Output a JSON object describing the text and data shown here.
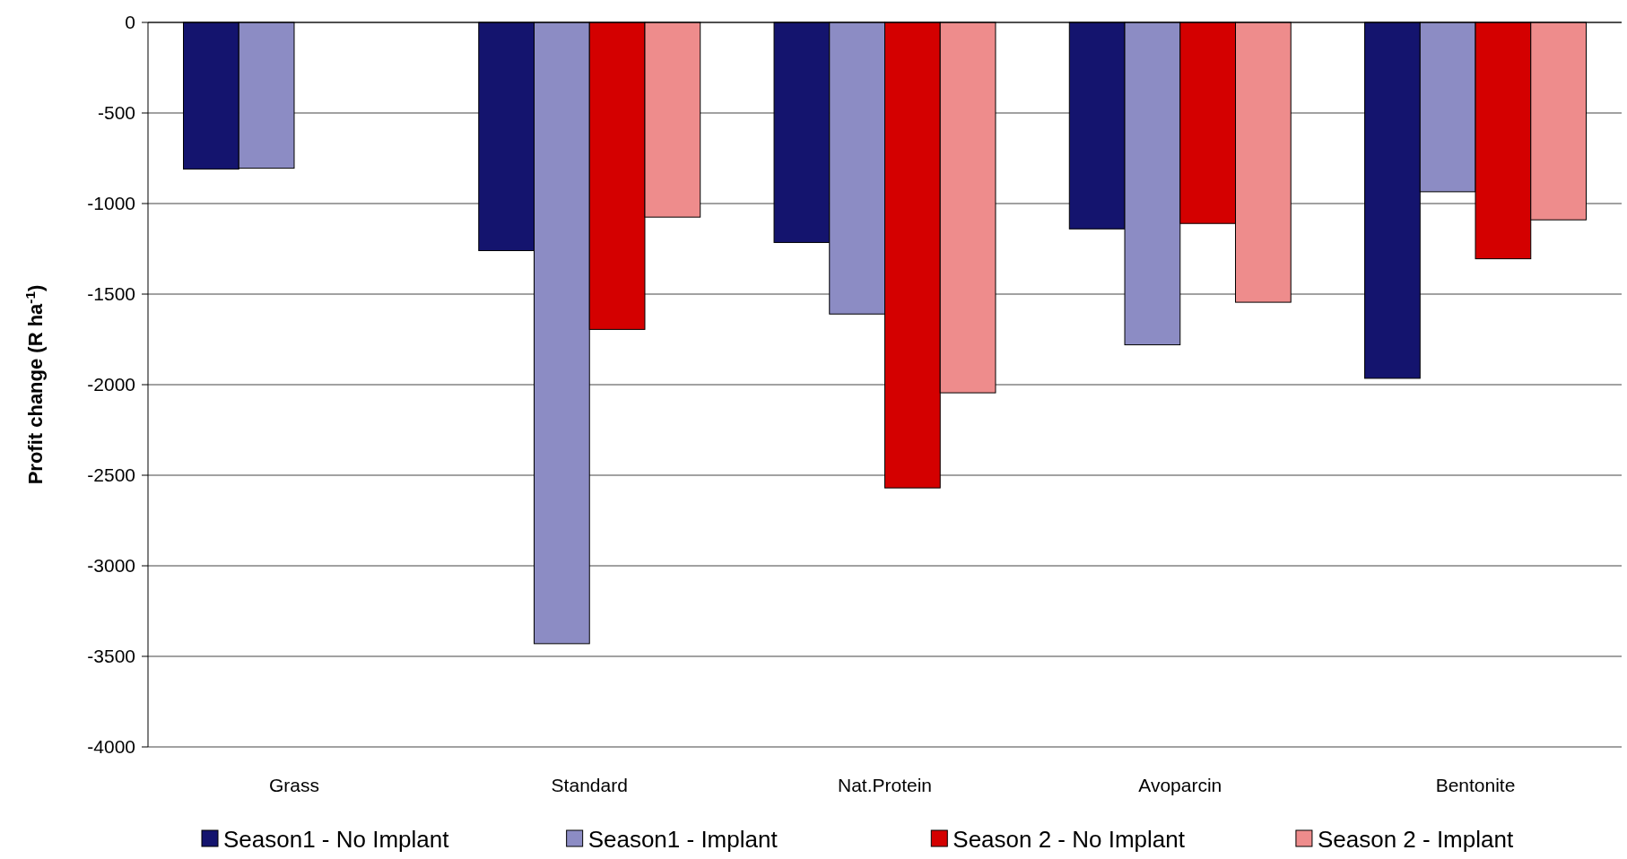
{
  "chart_data": {
    "type": "bar",
    "ylabel": "Profit change (R ha$^{-1}$)",
    "categories": [
      "Grass",
      "Standard",
      "Nat.Protein",
      "Avoparcin",
      "Bentonite"
    ],
    "series": [
      {
        "name": "Season1 - No Implant",
        "color": "#14146e",
        "values": [
          -810,
          -1260,
          -1215,
          -1140,
          -1965
        ]
      },
      {
        "name": "Season1 - Implant",
        "color": "#8c8cc4",
        "values": [
          -805,
          -3430,
          -1610,
          -1780,
          -935
        ]
      },
      {
        "name": "Season 2 - No Implant",
        "color": "#d40000",
        "values": [
          null,
          -1695,
          -2570,
          -1110,
          -1305
        ]
      },
      {
        "name": "Season 2 - Implant",
        "color": "#ee8c8c",
        "values": [
          null,
          -1075,
          -2045,
          -1545,
          -1090
        ]
      }
    ],
    "ylim": [
      -4000,
      0
    ],
    "yticks": [
      -4000,
      -3500,
      -3000,
      -2500,
      -2000,
      -1500,
      -1000,
      -500,
      0
    ],
    "grid": "y",
    "legend": "bottom"
  }
}
